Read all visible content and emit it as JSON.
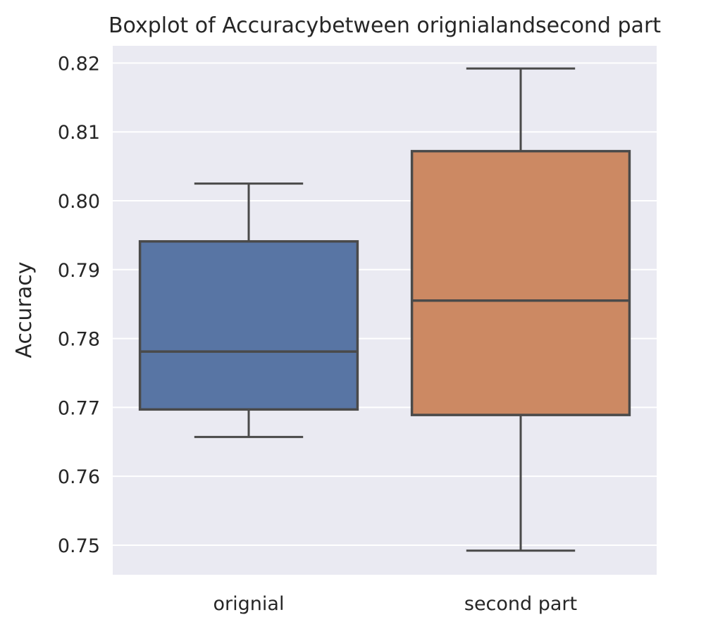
{
  "chart_data": {
    "type": "box",
    "title": "Boxplot of Accuracybetween orignialandsecond part",
    "xlabel": "",
    "ylabel": "Accuracy",
    "ylim": [
      0.7457,
      0.8225
    ],
    "yticks": [
      0.75,
      0.76,
      0.77,
      0.78,
      0.79,
      0.8,
      0.81,
      0.82
    ],
    "ytick_labels": [
      "0.75",
      "0.76",
      "0.77",
      "0.78",
      "0.79",
      "0.80",
      "0.81",
      "0.82"
    ],
    "grid": true,
    "categories": [
      "orignial",
      "second part"
    ],
    "boxes": [
      {
        "category": "orignial",
        "whisker_low": 0.7657,
        "q1": 0.7697,
        "median": 0.7781,
        "q3": 0.7941,
        "whisker_high": 0.8025,
        "color": "#5875a4"
      },
      {
        "category": "second part",
        "whisker_low": 0.7492,
        "q1": 0.7689,
        "median": 0.7855,
        "q3": 0.8072,
        "whisker_high": 0.8192,
        "color": "#cc8963"
      }
    ]
  }
}
